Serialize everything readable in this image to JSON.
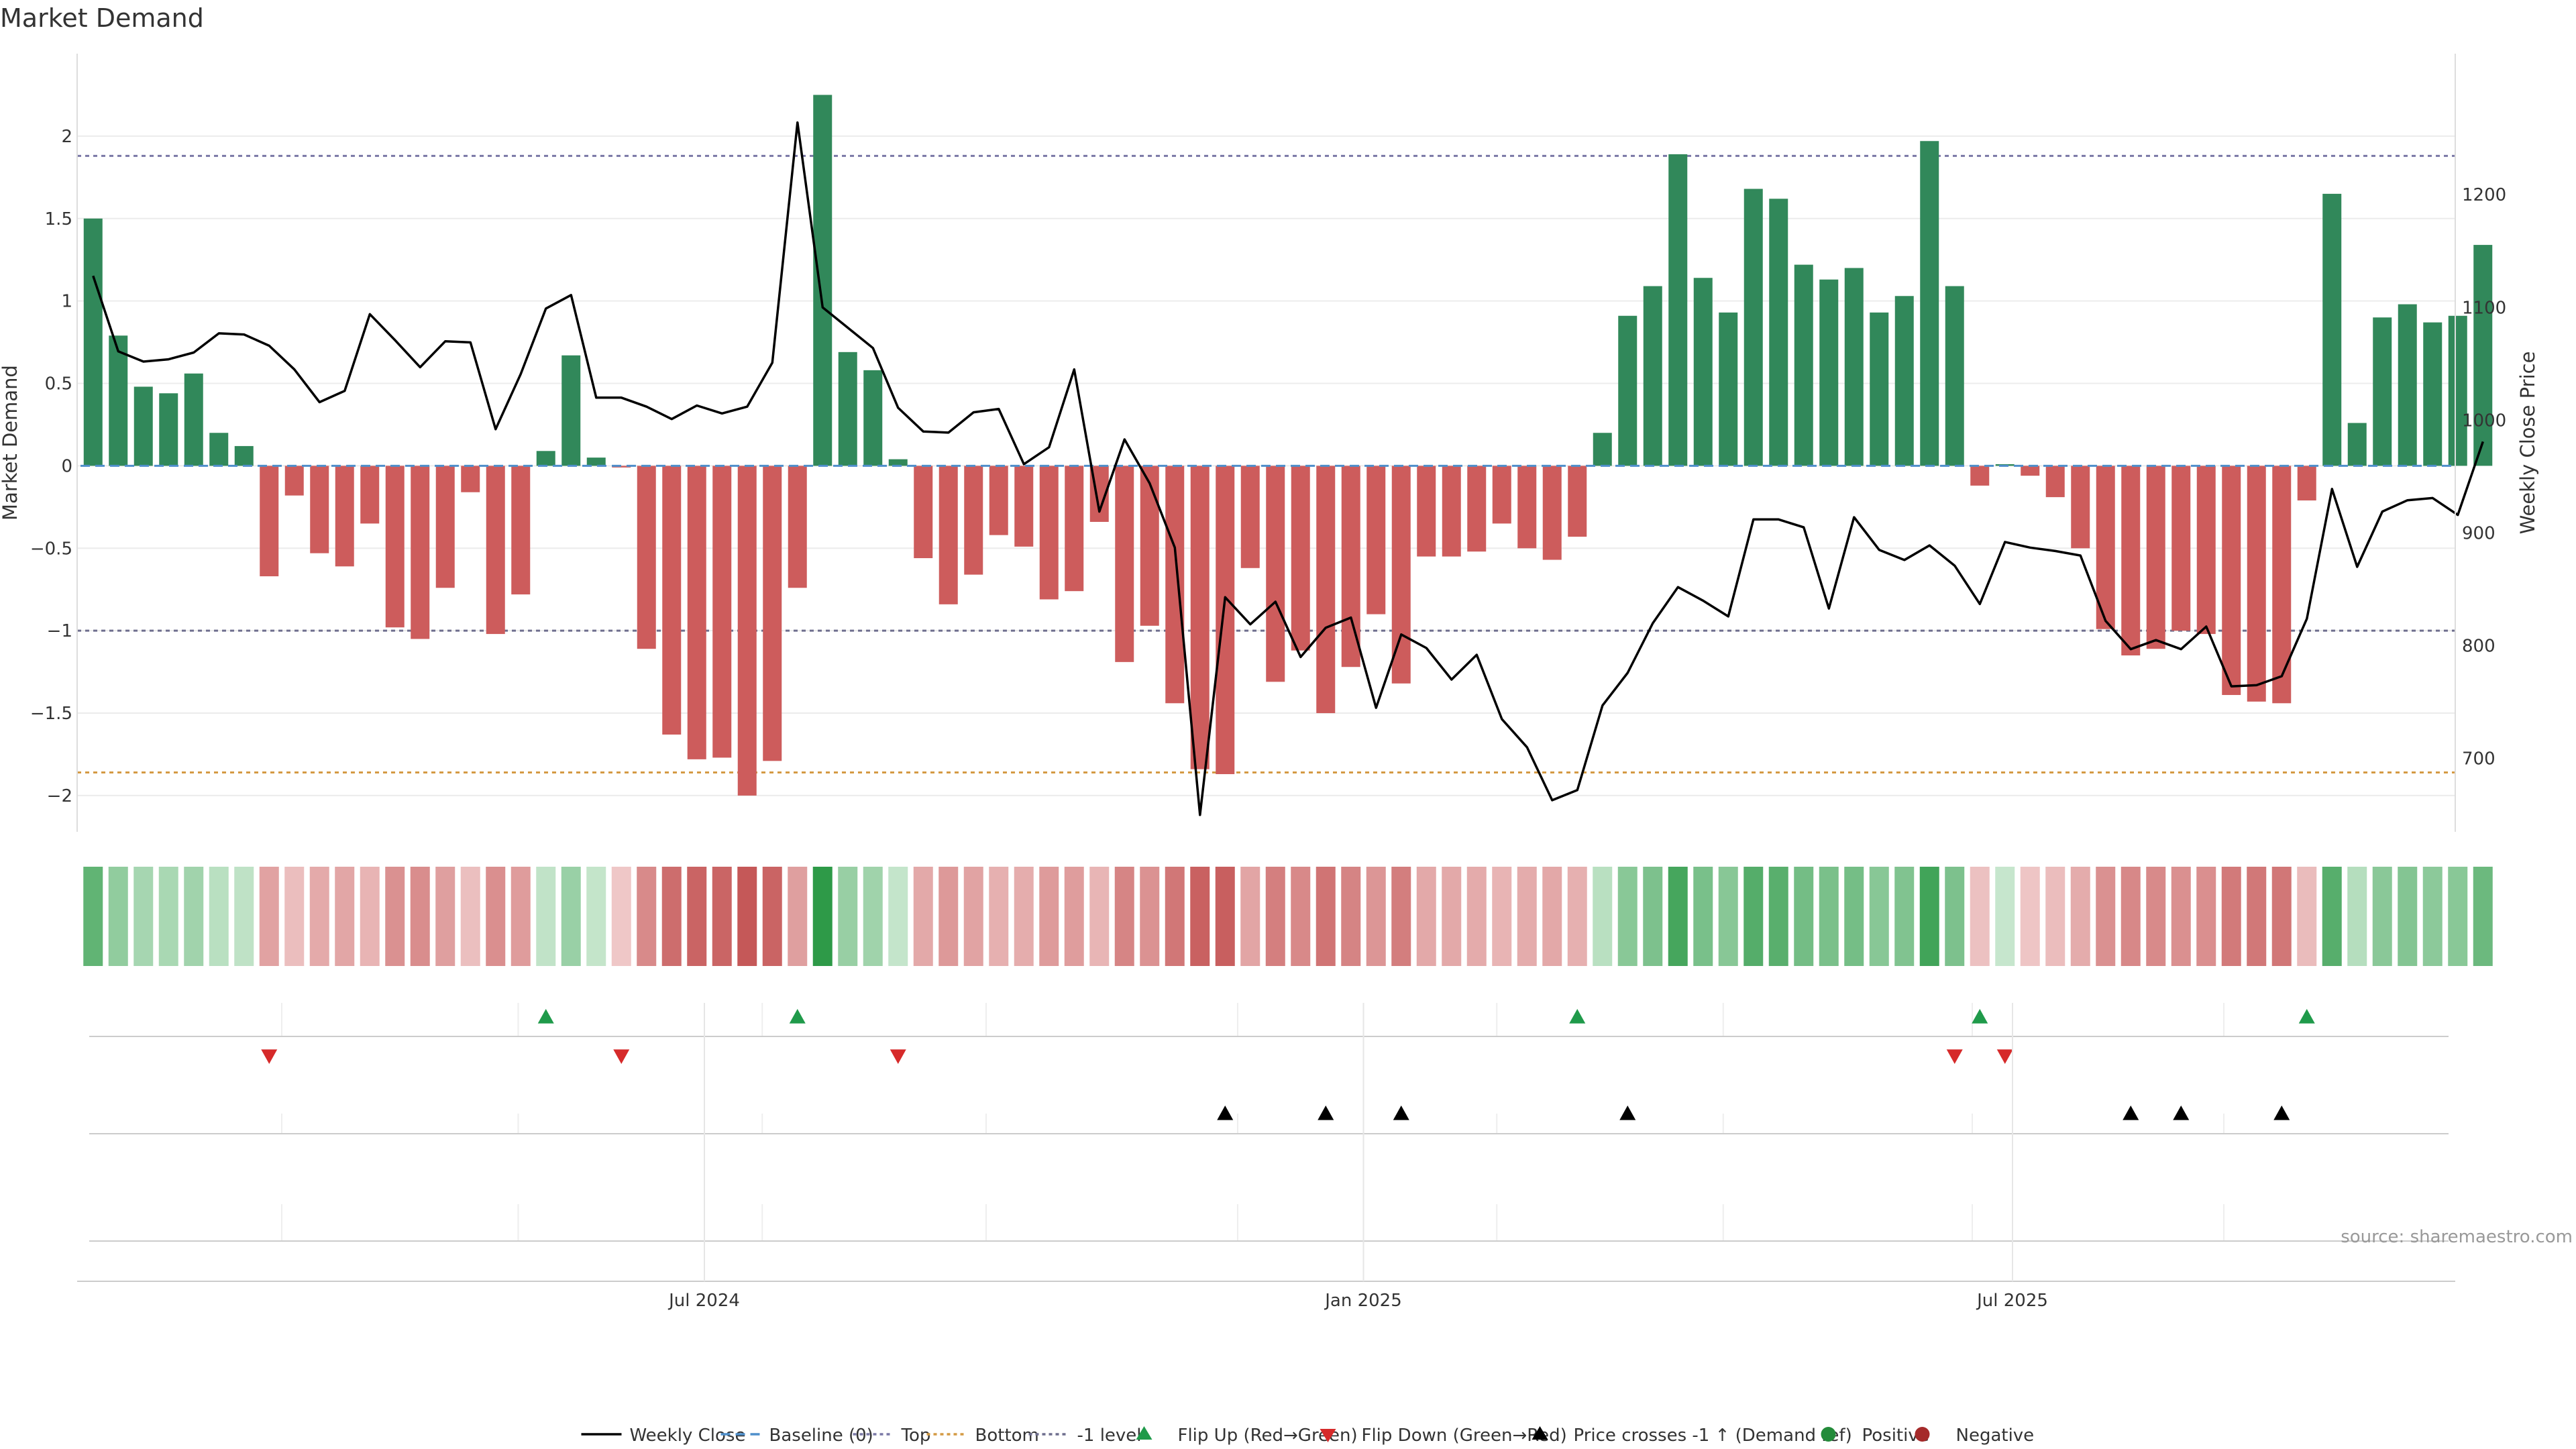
{
  "chart_data": {
    "type": "bar+line",
    "title": "Market Demand",
    "ylabel_left": "Market Demand",
    "ylabel_right": "Weekly Close Price",
    "y_left_range": [
      -2.22,
      2.5
    ],
    "y_left_ticks": [
      2,
      1.5,
      1,
      0.5,
      0,
      -0.5,
      -1,
      -1.5,
      -2
    ],
    "y_left_tick_labels": [
      "2",
      "1.5",
      "1",
      "0.5",
      "0",
      "−0.5",
      "−1",
      "−1.5",
      "−2"
    ],
    "y_right_range": [
      635,
      1325
    ],
    "y_right_ticks": [
      1200,
      1100,
      1000,
      900,
      800,
      700
    ],
    "y_right_tick_labels": [
      "1200",
      "1100",
      "1000",
      "900",
      "800",
      "700"
    ],
    "x_tick_labels": [
      {
        "label": "Jul 2024",
        "week": 24.3
      },
      {
        "label": "Jan 2025",
        "week": 50.5
      },
      {
        "label": "Jul 2025",
        "week": 76.3
      }
    ],
    "reference_lines": {
      "top": 1.88,
      "bottom": -1.86,
      "minus_one": -1.0,
      "baseline": 0
    },
    "demand": [
      1.5,
      0.79,
      0.48,
      0.44,
      0.56,
      0.2,
      0.12,
      -0.67,
      -0.18,
      -0.53,
      -0.61,
      -0.35,
      -0.98,
      -1.05,
      -0.74,
      -0.16,
      -1.02,
      -0.78,
      0.09,
      0.67,
      0.05,
      -0.01,
      -1.11,
      -1.63,
      -1.78,
      -1.77,
      -2.0,
      -1.79,
      -0.74,
      2.25,
      0.69,
      0.58,
      0.04,
      -0.56,
      -0.84,
      -0.66,
      -0.42,
      -0.49,
      -0.81,
      -0.76,
      -0.34,
      -1.19,
      -0.97,
      -1.44,
      -1.84,
      -1.87,
      -0.62,
      -1.31,
      -1.12,
      -1.5,
      -1.22,
      -0.9,
      -1.32,
      -0.55,
      -0.55,
      -0.52,
      -0.35,
      -0.5,
      -0.57,
      -0.43,
      0.2,
      0.91,
      1.09,
      1.89,
      1.14,
      0.93,
      1.68,
      1.62,
      1.22,
      1.13,
      1.2,
      0.93,
      1.03,
      1.97,
      1.09,
      -0.12,
      0.01,
      -0.06,
      -0.19,
      -0.5,
      -0.99,
      -1.15,
      -1.11,
      -1.0,
      -1.02,
      -1.39,
      -1.43,
      -1.44,
      -0.21,
      1.65,
      0.26,
      0.9,
      0.98,
      0.87,
      0.91,
      1.34
    ],
    "weekly_close": [
      1128,
      1061,
      1052,
      1054,
      1060,
      1077,
      1076,
      1066,
      1045,
      1016,
      1026,
      1094,
      1071,
      1047,
      1070,
      1069,
      992,
      1041,
      1099,
      1111,
      1020,
      1020,
      1012,
      1001,
      1013,
      1006,
      1012,
      1051,
      1264,
      1100,
      1082,
      1064,
      1011,
      990,
      989,
      1007,
      1010,
      961,
      976,
      1045,
      919,
      983,
      944,
      887,
      650,
      843,
      819,
      839,
      790,
      816,
      825,
      745,
      810,
      798,
      770,
      792,
      735,
      710,
      663,
      672,
      747,
      776,
      820,
      852,
      840,
      826,
      912,
      912,
      905,
      833,
      914,
      885,
      876,
      889,
      871,
      837,
      892,
      887,
      884,
      880,
      822,
      797,
      805,
      797,
      817,
      764,
      765,
      773,
      824,
      939,
      870,
      919,
      929,
      931,
      916,
      981
    ],
    "flip_up_weeks": [
      18,
      28,
      59,
      75,
      88
    ],
    "flip_down_weeks": [
      7,
      21,
      32,
      74,
      76
    ],
    "price_cross_weeks": [
      45,
      49,
      52,
      61,
      81,
      83,
      87
    ],
    "colors": {
      "positive_bar": "#31885a",
      "negative_bar": "#cd5c5c",
      "line": "#000000",
      "baseline": "#4f8fcb",
      "top": "#7a78a6",
      "bottom": "#d49a43",
      "minus_one": "#6e6e8e",
      "flip_up": "#1f9a4a",
      "flip_down": "#d62a2a",
      "cross": "#000000",
      "positive_dot": "#238b3a",
      "negative_dot": "#a52a2a"
    },
    "legend": [
      {
        "label": "Weekly Close",
        "kind": "line-solid",
        "color": "#000000"
      },
      {
        "label": "Baseline (0)",
        "kind": "line-dashed",
        "color": "#4f8fcb"
      },
      {
        "label": "Top",
        "kind": "line-dotted",
        "color": "#7a78a6"
      },
      {
        "label": "Bottom",
        "kind": "line-dotted",
        "color": "#d49a43"
      },
      {
        "label": "-1 level",
        "kind": "line-dotted",
        "color": "#6e6e8e"
      },
      {
        "label": "Flip Up (Red→Green)",
        "kind": "tri-up",
        "color": "#1f9a4a"
      },
      {
        "label": "Flip Down (Green→Red)",
        "kind": "tri-down",
        "color": "#d62a2a"
      },
      {
        "label": "Price crosses -1 ↑ (Demand ref)",
        "kind": "tri-up",
        "color": "#000000"
      },
      {
        "label": "Positive",
        "kind": "dot",
        "color": "#238b3a"
      },
      {
        "label": "Negative",
        "kind": "dot",
        "color": "#a52a2a"
      }
    ],
    "source": "source: sharemaestro.com"
  }
}
